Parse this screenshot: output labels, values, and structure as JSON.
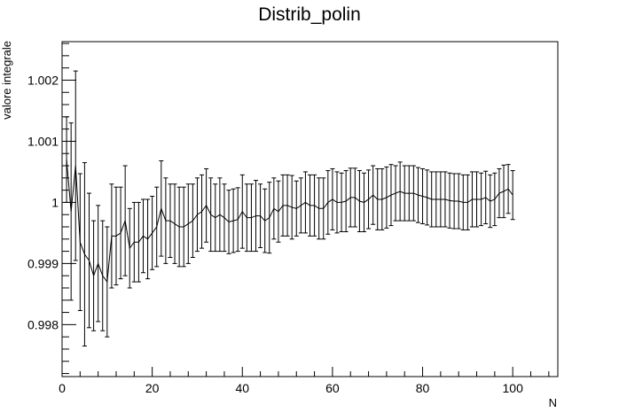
{
  "chart_data": {
    "type": "line",
    "title": "Distrib_polin",
    "xlabel": "N",
    "ylabel": "valore integrale",
    "xlim": [
      0,
      110
    ],
    "ylim": [
      0.99715,
      1.00263
    ],
    "x_ticks": [
      0,
      20,
      40,
      60,
      80,
      100
    ],
    "x_tick_labels": [
      "0",
      "20",
      "40",
      "60",
      "80",
      "100"
    ],
    "y_ticks": [
      0.998,
      0.999,
      1.0,
      1.001,
      1.002
    ],
    "y_tick_labels": [
      "0.998",
      "0.999",
      "1",
      "1.001",
      "1.002"
    ],
    "grid": false,
    "legend": "none",
    "error_bars": true,
    "line_color": "#000000",
    "series": [
      {
        "x": [
          1,
          2,
          3,
          4,
          5,
          6,
          7,
          8,
          9,
          10,
          11,
          12,
          13,
          14,
          15,
          16,
          17,
          18,
          19,
          20,
          21,
          22,
          23,
          24,
          25,
          26,
          27,
          28,
          29,
          30,
          31,
          32,
          33,
          34,
          35,
          36,
          37,
          38,
          39,
          40,
          41,
          42,
          43,
          44,
          45,
          46,
          47,
          48,
          49,
          50,
          51,
          52,
          53,
          54,
          55,
          56,
          57,
          58,
          59,
          60,
          61,
          62,
          63,
          64,
          65,
          66,
          67,
          68,
          69,
          70,
          71,
          72,
          73,
          74,
          75,
          76,
          77,
          78,
          79,
          80,
          81,
          82,
          83,
          84,
          85,
          86,
          87,
          88,
          89,
          90,
          91,
          92,
          93,
          94,
          95,
          96,
          97,
          98,
          99,
          100
        ],
        "y": [
          1.0007,
          0.99985,
          1.0006,
          0.99935,
          0.99915,
          0.99905,
          0.9988,
          0.999,
          0.9988,
          0.9987,
          0.99945,
          0.99945,
          0.9995,
          0.9997,
          0.99925,
          0.99935,
          0.99935,
          0.99945,
          0.9994,
          0.9995,
          0.9996,
          0.9999,
          0.9997,
          0.9997,
          0.99965,
          0.9996,
          0.9996,
          0.99965,
          0.9997,
          0.9998,
          0.99985,
          0.99995,
          0.9998,
          0.99975,
          0.9998,
          0.99975,
          0.99968,
          0.9997,
          0.99972,
          0.99985,
          0.99975,
          0.99975,
          0.99978,
          0.99978,
          0.9997,
          0.99975,
          0.9999,
          0.99985,
          0.99995,
          0.99995,
          0.99992,
          0.9999,
          0.99995,
          1.0,
          0.99995,
          0.99995,
          0.9999,
          0.9999,
          1.0,
          1.00005,
          1.0,
          1.0,
          1.00002,
          1.00008,
          1.00008,
          1.00002,
          1.0,
          1.00005,
          1.00012,
          1.00005,
          1.00005,
          1.00008,
          1.00012,
          1.00015,
          1.00018,
          1.00015,
          1.00015,
          1.00015,
          1.00012,
          1.0001,
          1.00008,
          1.00005,
          1.00005,
          1.00005,
          1.00005,
          1.00003,
          1.00002,
          1.00002,
          1.0,
          1.0,
          1.00005,
          1.00005,
          1.00005,
          1.00008,
          1.00002,
          1.00005,
          1.00015,
          1.00018,
          1.00022,
          1.00012
        ],
        "error": [
          0.0007,
          0.00145,
          0.00155,
          0.00112,
          0.0015,
          0.0011,
          0.0009,
          0.00095,
          0.0009,
          0.0009,
          0.00085,
          0.0008,
          0.00075,
          0.0009,
          0.00065,
          0.00065,
          0.00065,
          0.0006,
          0.00065,
          0.0006,
          0.00065,
          0.00078,
          0.0007,
          0.0006,
          0.00065,
          0.00065,
          0.00065,
          0.00065,
          0.0006,
          0.0006,
          0.0006,
          0.0006,
          0.0006,
          0.00055,
          0.0006,
          0.00055,
          0.00052,
          0.00052,
          0.00052,
          0.0006,
          0.00055,
          0.00055,
          0.00058,
          0.00052,
          0.00052,
          0.00058,
          0.0005,
          0.0005,
          0.0005,
          0.0005,
          0.00052,
          0.00045,
          0.00045,
          0.0005,
          0.0005,
          0.0005,
          0.0005,
          0.0005,
          0.00052,
          0.0005,
          0.0005,
          0.00048,
          0.0005,
          0.00048,
          0.00048,
          0.0005,
          0.00048,
          0.00048,
          0.00048,
          0.0005,
          0.0005,
          0.0005,
          0.0005,
          0.00045,
          0.00048,
          0.00045,
          0.00045,
          0.00045,
          0.00045,
          0.00045,
          0.00045,
          0.00045,
          0.00045,
          0.00045,
          0.00045,
          0.00045,
          0.00045,
          0.00045,
          0.00045,
          0.00045,
          0.00045,
          0.00045,
          0.00043,
          0.00043,
          0.00043,
          0.00043,
          0.0004,
          0.00043,
          0.0004,
          0.0004
        ]
      }
    ]
  }
}
